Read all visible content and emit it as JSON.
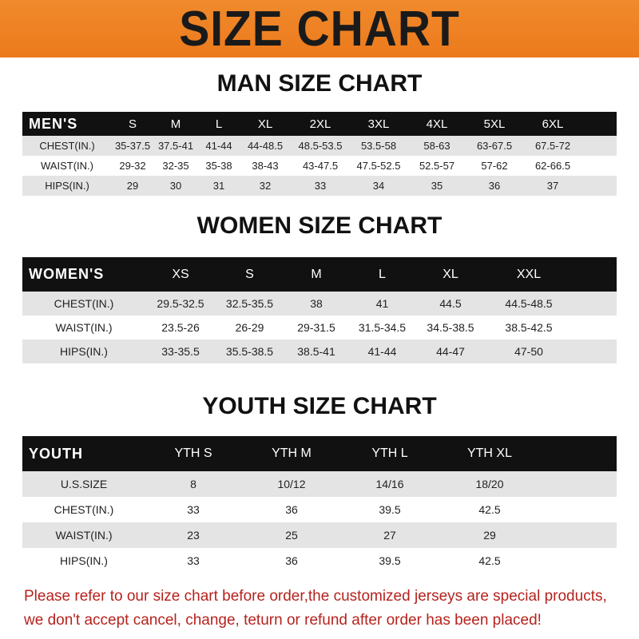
{
  "header": {
    "title": "SIZE CHART",
    "accent": "#ec7a1c"
  },
  "men": {
    "title": "MAN SIZE CHART",
    "label": "MEN'S",
    "sizes": [
      "S",
      "M",
      "L",
      "XL",
      "2XL",
      "3XL",
      "4XL",
      "5XL",
      "6XL"
    ],
    "rows": [
      {
        "label": "CHEST(IN.)",
        "values": [
          "35-37.5",
          "37.5-41",
          "41-44",
          "44-48.5",
          "48.5-53.5",
          "53.5-58",
          "58-63",
          "63-67.5",
          "67.5-72"
        ]
      },
      {
        "label": "WAIST(IN.)",
        "values": [
          "29-32",
          "32-35",
          "35-38",
          "38-43",
          "43-47.5",
          "47.5-52.5",
          "52.5-57",
          "57-62",
          "62-66.5"
        ]
      },
      {
        "label": "HIPS(IN.)",
        "values": [
          "29",
          "30",
          "31",
          "32",
          "33",
          "34",
          "35",
          "36",
          "37"
        ]
      }
    ]
  },
  "women": {
    "title": "WOMEN SIZE CHART",
    "label": "WOMEN'S",
    "sizes": [
      "XS",
      "S",
      "M",
      "L",
      "XL",
      "XXL"
    ],
    "rows": [
      {
        "label": "CHEST(IN.)",
        "values": [
          "29.5-32.5",
          "32.5-35.5",
          "38",
          "41",
          "44.5",
          "44.5-48.5"
        ]
      },
      {
        "label": "WAIST(IN.)",
        "values": [
          "23.5-26",
          "26-29",
          "29-31.5",
          "31.5-34.5",
          "34.5-38.5",
          "38.5-42.5"
        ]
      },
      {
        "label": "HIPS(IN.)",
        "values": [
          "33-35.5",
          "35.5-38.5",
          "38.5-41",
          "41-44",
          "44-47",
          "47-50"
        ]
      }
    ]
  },
  "youth": {
    "title": "YOUTH SIZE CHART",
    "label": "YOUTH",
    "sizes": [
      "YTH S",
      "YTH M",
      "YTH L",
      "YTH XL"
    ],
    "rows": [
      {
        "label": "U.S.SIZE",
        "values": [
          "8",
          "10/12",
          "14/16",
          "18/20"
        ]
      },
      {
        "label": "CHEST(IN.)",
        "values": [
          "33",
          "36",
          "39.5",
          "42.5"
        ]
      },
      {
        "label": "WAIST(IN.)",
        "values": [
          "23",
          "25",
          "27",
          "29"
        ]
      },
      {
        "label": "HIPS(IN.)",
        "values": [
          "33",
          "36",
          "39.5",
          "42.5"
        ]
      }
    ]
  },
  "notice": {
    "line1": "Please refer to our size chart before order,the customized jerseys are special products,",
    "line2": "we don't accept cancel, change, teturn or refund after order has been placed!",
    "color": "#b5231e"
  }
}
